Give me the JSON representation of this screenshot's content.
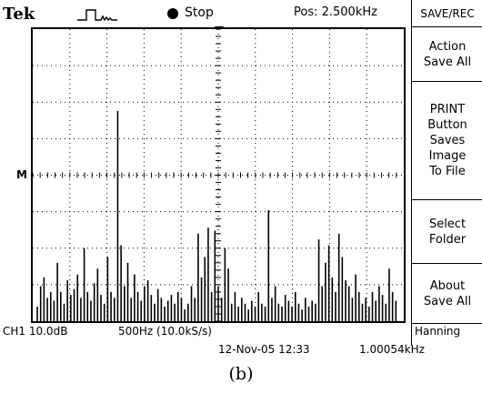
{
  "header": {
    "brand": "Tek",
    "trigger_icon": "trigger-waveform-icon",
    "run_state": "Stop",
    "position": "Pos: 2.500kHz"
  },
  "menu": {
    "title": "SAVE/REC",
    "buttons": [
      {
        "label": "Action\nSave All"
      },
      {
        "label": "PRINT\nButton\nSaves\nImage\nTo File"
      },
      {
        "label": "Select\nFolder"
      },
      {
        "label": "About\nSave All"
      }
    ]
  },
  "display": {
    "ref_marker": "M",
    "spectrum_heights": [
      0.05,
      0.12,
      0.15,
      0.08,
      0.1,
      0.07,
      0.2,
      0.1,
      0.06,
      0.14,
      0.09,
      0.11,
      0.16,
      0.08,
      0.25,
      0.1,
      0.07,
      0.13,
      0.18,
      0.09,
      0.06,
      0.22,
      0.1,
      0.08,
      0.72,
      0.26,
      0.12,
      0.2,
      0.08,
      0.16,
      0.1,
      0.07,
      0.12,
      0.14,
      0.09,
      0.06,
      0.11,
      0.08,
      0.05,
      0.07,
      0.09,
      0.06,
      0.1,
      0.08,
      0.04,
      0.06,
      0.12,
      0.08,
      0.3,
      0.15,
      0.22,
      0.32,
      0.1,
      0.31,
      0.12,
      0.08,
      0.25,
      0.18,
      0.06,
      0.1,
      0.05,
      0.08,
      0.06,
      0.04,
      0.07,
      0.05,
      0.1,
      0.06,
      0.05,
      0.38,
      0.08,
      0.12,
      0.06,
      0.05,
      0.09,
      0.07,
      0.05,
      0.1,
      0.06,
      0.04,
      0.08,
      0.05,
      0.07,
      0.06,
      0.28,
      0.12,
      0.2,
      0.26,
      0.15,
      0.1,
      0.3,
      0.22,
      0.14,
      0.12,
      0.08,
      0.16,
      0.1,
      0.06,
      0.08,
      0.05,
      0.1,
      0.07,
      0.12,
      0.09,
      0.06,
      0.18,
      0.1,
      0.07
    ]
  },
  "status": {
    "channel": "CH1 10.0dB",
    "timebase": "500Hz (10.0kS/s)",
    "window": "Hanning",
    "datetime": "12-Nov-05 12:33",
    "frequency": "1.00054kHz"
  },
  "caption": "(b)"
}
